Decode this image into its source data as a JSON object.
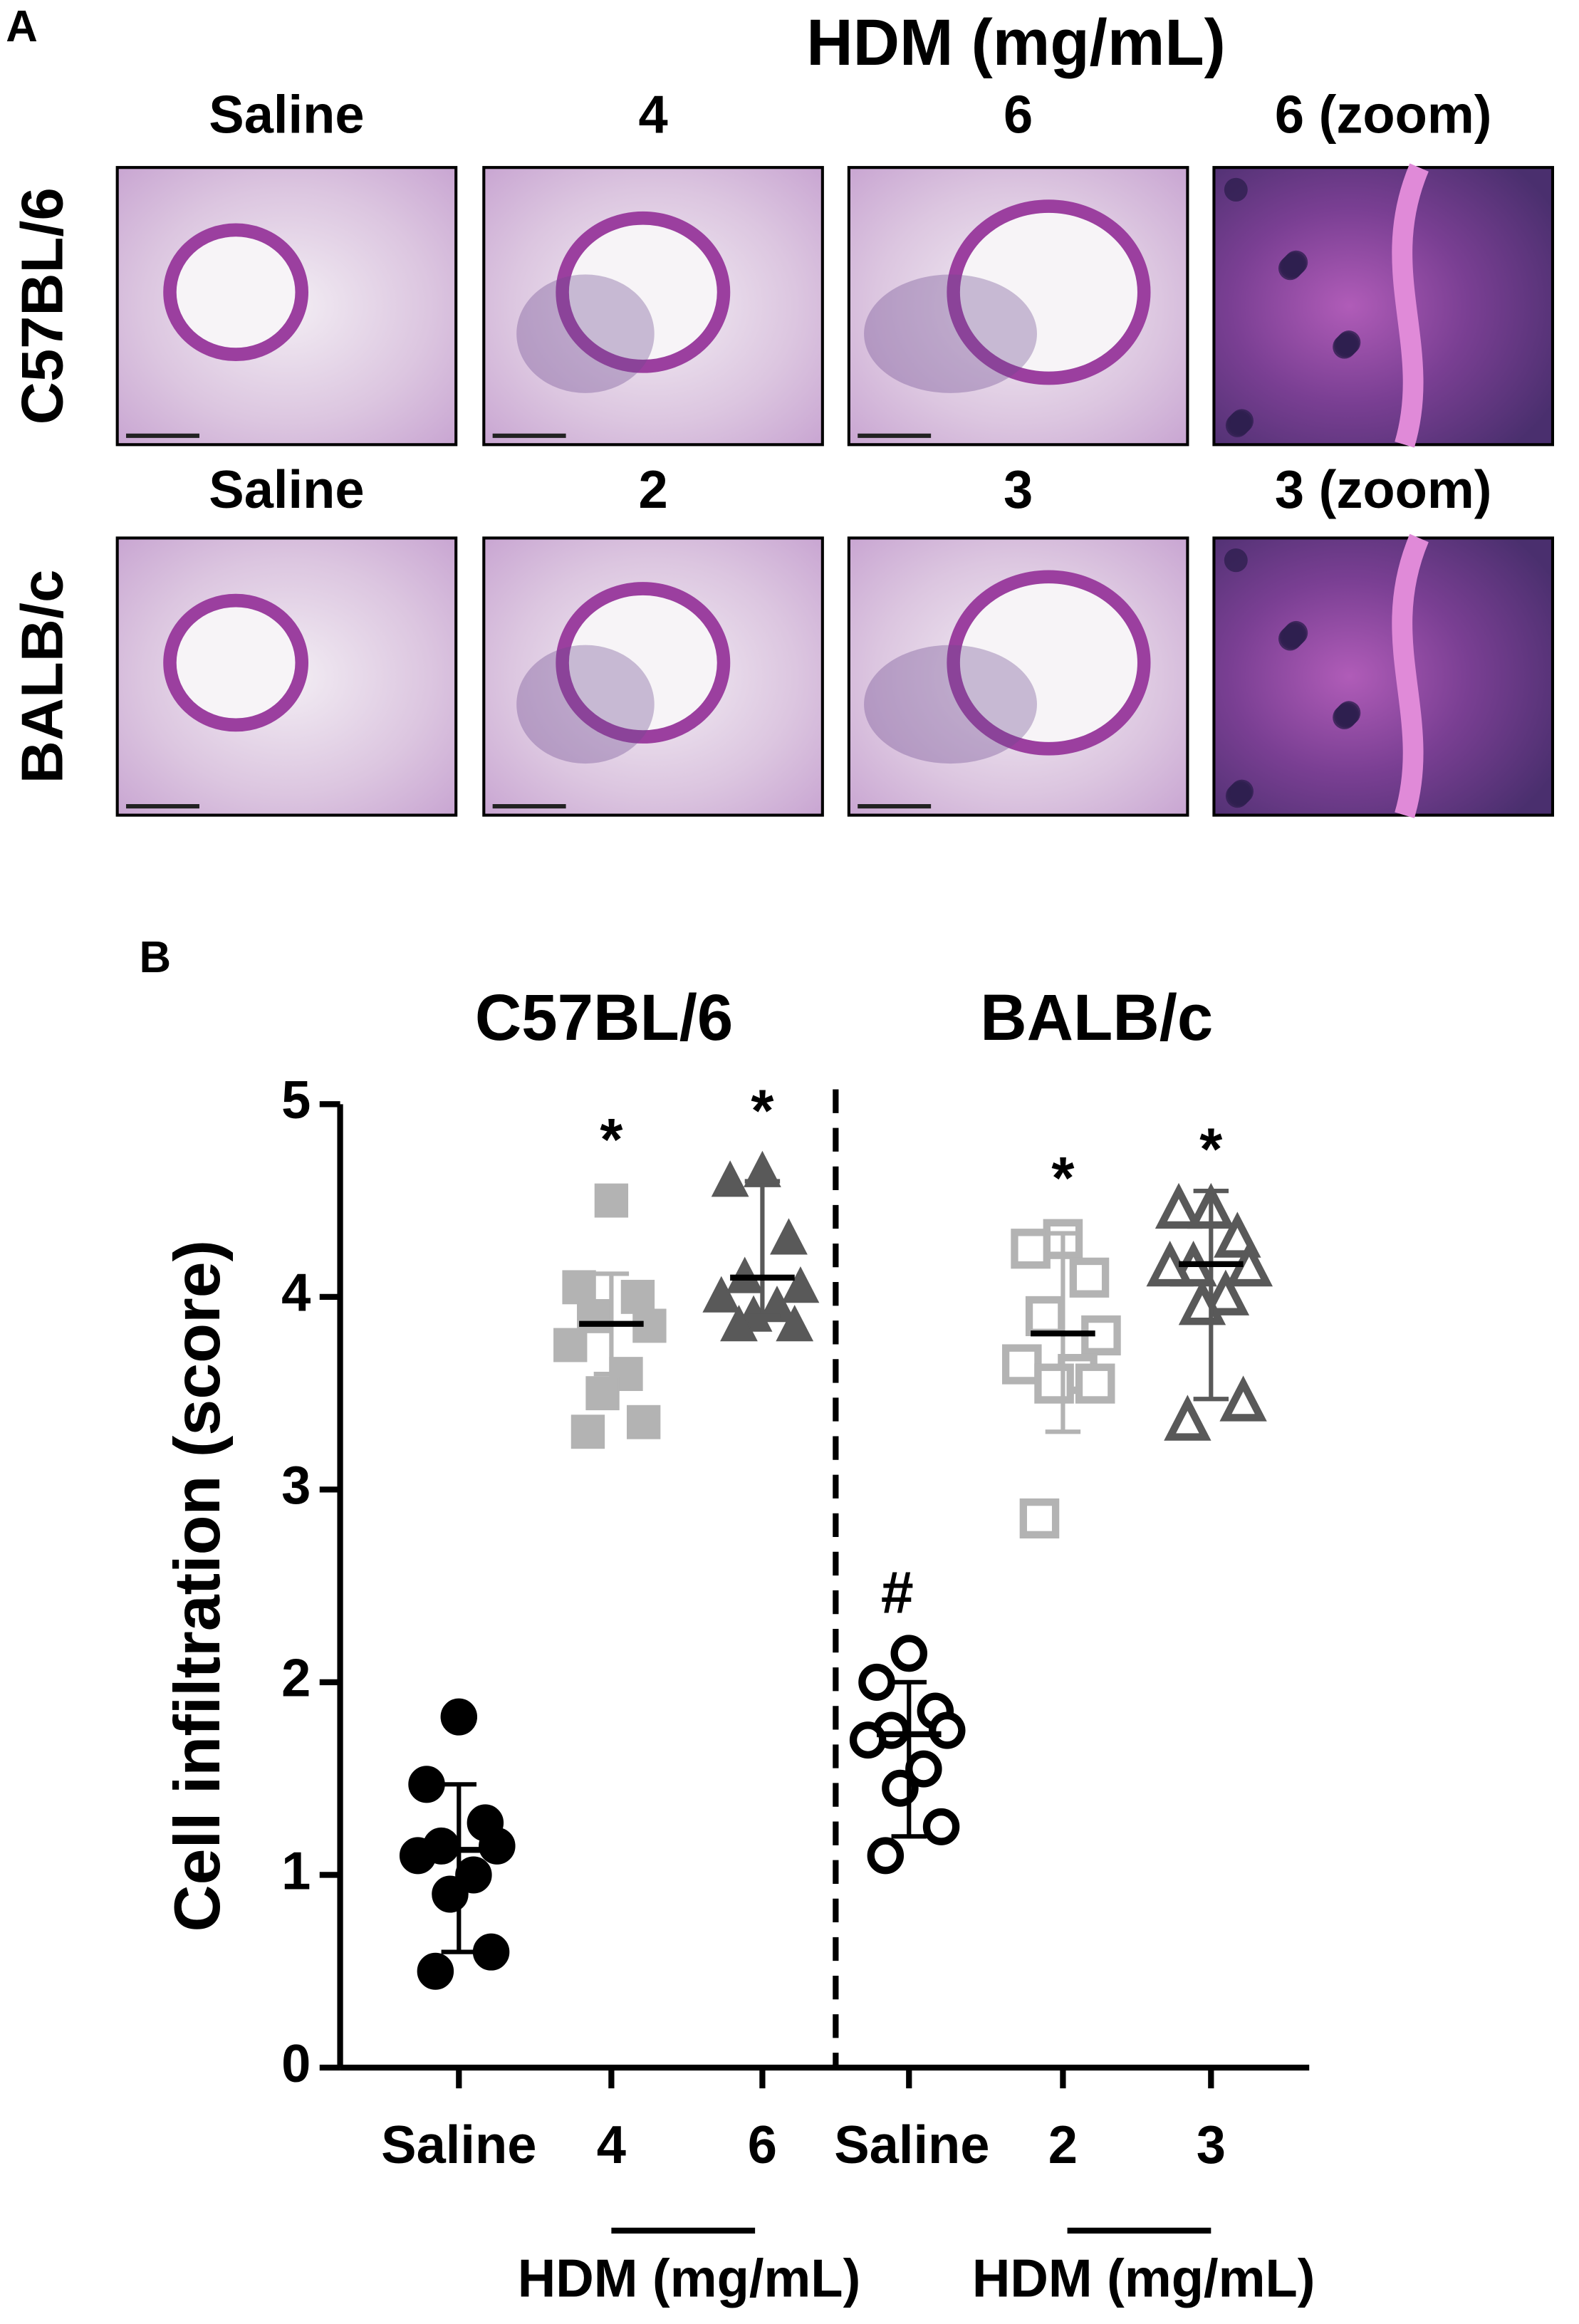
{
  "panel_a": {
    "label": "A",
    "title": "HDM (mg/mL)",
    "rows": [
      {
        "label": "C57BL/6",
        "columns": [
          "Saline",
          "4",
          "6",
          "6 (zoom)"
        ]
      },
      {
        "label": "BALB/c",
        "columns": [
          "Saline",
          "2",
          "3",
          "3 (zoom)"
        ]
      }
    ]
  },
  "chart_data": {
    "type": "dot",
    "panel_label": "B",
    "group_titles": [
      "C57BL/6",
      "BALB/c"
    ],
    "y_label": "Cell infiltration (score)",
    "categories": [
      "Saline",
      "4",
      "6",
      "Saline",
      "2",
      "3"
    ],
    "bracket_labels": [
      "HDM (mg/mL)",
      "HDM (mg/mL)"
    ],
    "points": [
      [
        1.82,
        1.47,
        1.27,
        1.15,
        1.15,
        1.1,
        1.0,
        0.9,
        0.6,
        0.5
      ],
      [
        4.5,
        4.05,
        4.0,
        3.9,
        3.85,
        3.75,
        3.6,
        3.5,
        3.35,
        3.3
      ],
      [
        4.65,
        4.6,
        4.3,
        4.1,
        4.05,
        4.0,
        3.95,
        3.9,
        3.85,
        3.85
      ],
      [
        2.15,
        2.0,
        1.85,
        1.75,
        1.75,
        1.7,
        1.55,
        1.45,
        1.25,
        1.1
      ],
      [
        4.3,
        4.25,
        4.1,
        3.9,
        3.8,
        3.65,
        3.6,
        3.55,
        3.55,
        2.85
      ],
      [
        4.45,
        4.45,
        4.3,
        4.15,
        4.15,
        4.15,
        4.0,
        3.95,
        3.45,
        3.35
      ]
    ],
    "means": [
      1.13,
      3.86,
      4.1,
      1.73,
      3.81,
      4.17
    ],
    "sd_low": [
      0.6,
      3.6,
      3.9,
      1.2,
      3.3,
      3.47
    ],
    "sd_high": [
      1.47,
      4.12,
      4.6,
      2.0,
      4.33,
      4.55
    ],
    "markers": [
      "circle",
      "square",
      "triangle",
      "circle",
      "square",
      "triangle"
    ],
    "filled": [
      true,
      true,
      true,
      false,
      false,
      false
    ],
    "colors": [
      "#000000",
      "#b3b3b3",
      "#595959",
      "#000000",
      "#b3b3b3",
      "#595959"
    ],
    "annotations": [
      null,
      "*",
      "*",
      "#",
      "*",
      "*"
    ],
    "ylim": [
      0,
      5
    ],
    "yticks": [
      0,
      1,
      2,
      3,
      4,
      5
    ]
  }
}
